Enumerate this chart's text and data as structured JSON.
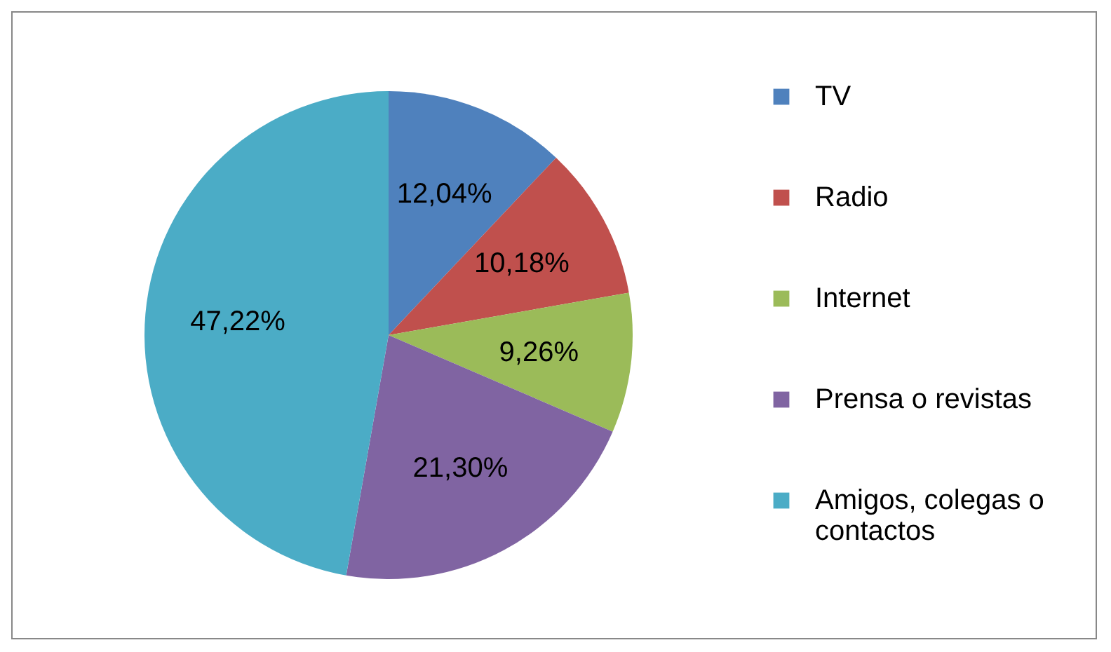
{
  "chart_data": {
    "type": "pie",
    "categories": [
      "TV",
      "Radio",
      "Internet",
      "Prensa o revistas",
      "Amigos, colegas o contactos"
    ],
    "values": [
      12.04,
      10.18,
      9.26,
      21.3,
      47.22
    ],
    "colors": [
      "#4f81bd",
      "#c0504d",
      "#9bbb59",
      "#8064a2",
      "#4bacc6"
    ],
    "value_labels": [
      "12,04%",
      "10,18%",
      "9,26%",
      "21,30%",
      "47,22%"
    ],
    "legend": "right"
  }
}
